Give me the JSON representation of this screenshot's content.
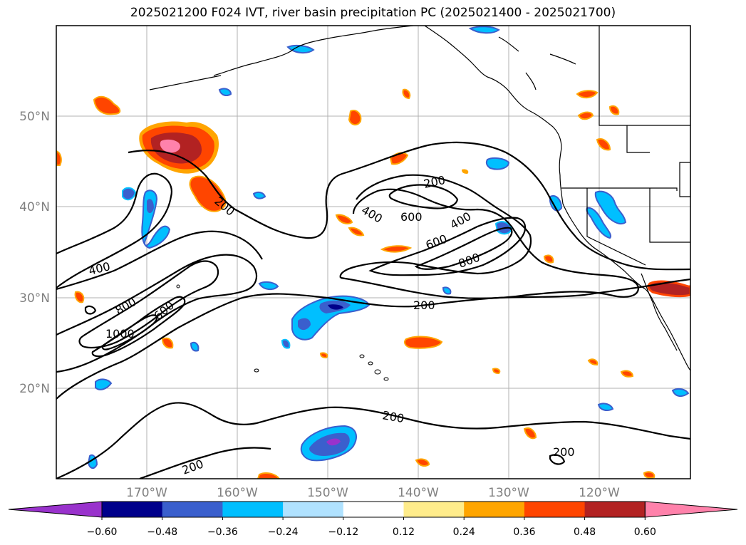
{
  "title": "2025021200 F024 IVT, river basin precipitation PC (2025021400 - 2025021700)",
  "map": {
    "lat_labels": [
      "50°N",
      "40°N",
      "30°N",
      "20°N"
    ],
    "lon_labels": [
      "170°W",
      "160°W",
      "150°W",
      "140°W",
      "130°W",
      "120°W"
    ],
    "gridlines": true
  },
  "ivt_contours": {
    "color": "#000000",
    "labels": [
      "200",
      "200",
      "200",
      "200",
      "200",
      "200",
      "400",
      "400",
      "400",
      "600",
      "600",
      "600",
      "800",
      "800",
      "1000"
    ]
  },
  "colorbar": {
    "ticks": [
      "−0.60",
      "−0.48",
      "−0.36",
      "−0.24",
      "−0.12",
      "0.12",
      "0.24",
      "0.36",
      "0.48",
      "0.60"
    ],
    "colors": [
      "#9932cc",
      "#00008b",
      "#3a5fcd",
      "#00bfff",
      "#b0e2ff",
      "#ffffff",
      "#ffec8b",
      "#ffa500",
      "#ff4500",
      "#b22222",
      "#ff82ab"
    ]
  },
  "colors": {
    "positive_low": "#ffec8b",
    "positive_mid": "#ffa500",
    "positive_high": "#ff4500",
    "positive_max": "#b22222",
    "positive_extreme": "#ff82ab",
    "negative_low": "#b0e2ff",
    "negative_mid": "#00bfff",
    "negative_high": "#3a5fcd",
    "negative_max": "#00008b",
    "negative_extreme": "#9932cc",
    "grid": "#b0b0b0",
    "tick_label": "#808080"
  }
}
